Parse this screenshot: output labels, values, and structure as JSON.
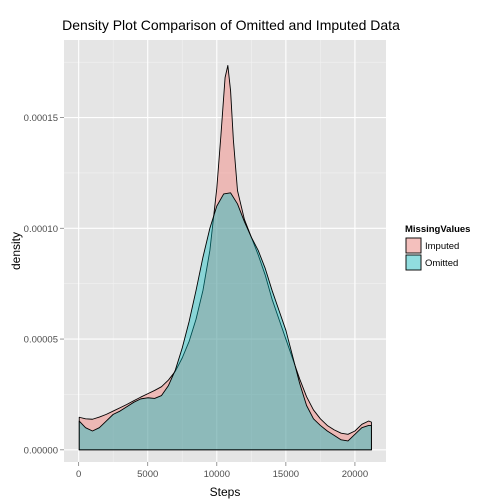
{
  "chart_data": {
    "type": "area",
    "title": "Density Plot Comparison of Omitted and Imputed Data",
    "xlabel": "Steps",
    "ylabel": "density",
    "xlim": [
      -1060,
      22250
    ],
    "ylim": [
      -5.5e-06,
      0.000185
    ],
    "x_ticks": [
      0,
      5000,
      10000,
      15000,
      20000
    ],
    "x_tick_labels": [
      "0",
      "5000",
      "10000",
      "15000",
      "20000"
    ],
    "y_ticks": [
      0,
      5e-05,
      0.0001,
      0.00015
    ],
    "y_tick_labels": [
      "0.00000",
      "0.00005",
      "0.00010",
      "0.00015"
    ],
    "grid": true,
    "legend": {
      "title": "MissingValues",
      "position": "right",
      "entries": [
        {
          "label": "Imputed",
          "color": "#F8766D"
        },
        {
          "label": "Omitted",
          "color": "#00BFC4"
        }
      ]
    },
    "series": [
      {
        "name": "Imputed",
        "color": "#F8766D",
        "x": [
          41,
          500,
          1000,
          1500,
          2000,
          2500,
          3000,
          3500,
          4000,
          4500,
          5000,
          5500,
          6000,
          6500,
          7000,
          7500,
          8000,
          8500,
          9000,
          9500,
          10000,
          10300,
          10600,
          10800,
          11000,
          11200,
          11500,
          12000,
          12500,
          13000,
          13500,
          14000,
          14500,
          15000,
          15500,
          16000,
          16500,
          17000,
          17500,
          18000,
          18500,
          19000,
          19500,
          20000,
          20500,
          21000,
          21194
        ],
        "y": [
          1.47e-05,
          1.4e-05,
          1.38e-05,
          1.48e-05,
          1.6e-05,
          1.75e-05,
          1.9e-05,
          2.05e-05,
          2.22e-05,
          2.38e-05,
          2.53e-05,
          2.68e-05,
          2.85e-05,
          3.15e-05,
          3.55e-05,
          4.15e-05,
          4.9e-05,
          5.9e-05,
          7.2e-05,
          9e-05,
          0.000118,
          0.000142,
          0.000168,
          0.0001735,
          0.000162,
          0.00014,
          0.000117,
          0.000104,
          9.6e-05,
          8.8e-05,
          7.9e-05,
          6.8e-05,
          5.9e-05,
          5e-05,
          4.1e-05,
          3.2e-05,
          2.4e-05,
          1.8e-05,
          1.4e-05,
          1.1e-05,
          9e-06,
          7.5e-06,
          7e-06,
          8.5e-06,
          1.15e-05,
          1.3e-05,
          1.25e-05
        ]
      },
      {
        "name": "Omitted",
        "color": "#00BFC4",
        "x": [
          41,
          500,
          1000,
          1500,
          2000,
          2500,
          3000,
          3500,
          4000,
          4500,
          5000,
          5500,
          6000,
          6500,
          7000,
          7500,
          8000,
          8500,
          9000,
          9500,
          10000,
          10500,
          11000,
          11500,
          12000,
          12500,
          13000,
          13500,
          14000,
          14500,
          15000,
          15500,
          16000,
          16500,
          17000,
          17500,
          18000,
          18500,
          19000,
          19500,
          20000,
          20500,
          21000,
          21194
        ],
        "y": [
          1.3e-05,
          1e-05,
          8.5e-06,
          1e-05,
          1.3e-05,
          1.6e-05,
          1.75e-05,
          1.95e-05,
          2.15e-05,
          2.3e-05,
          2.35e-05,
          2.32e-05,
          2.45e-05,
          2.9e-05,
          3.6e-05,
          4.6e-05,
          5.8e-05,
          7.2e-05,
          8.7e-05,
          0.0001,
          0.00011,
          0.0001155,
          0.000116,
          0.000111,
          0.000103,
          9.6e-05,
          9e-05,
          8.2e-05,
          7.2e-05,
          6.3e-05,
          5.4e-05,
          4.2e-05,
          3e-05,
          2e-05,
          1.4e-05,
          1.1e-05,
          8.5e-06,
          6.5e-06,
          4.5e-06,
          4e-06,
          7e-06,
          1e-05,
          1.1e-05,
          1.1e-05
        ]
      }
    ]
  }
}
